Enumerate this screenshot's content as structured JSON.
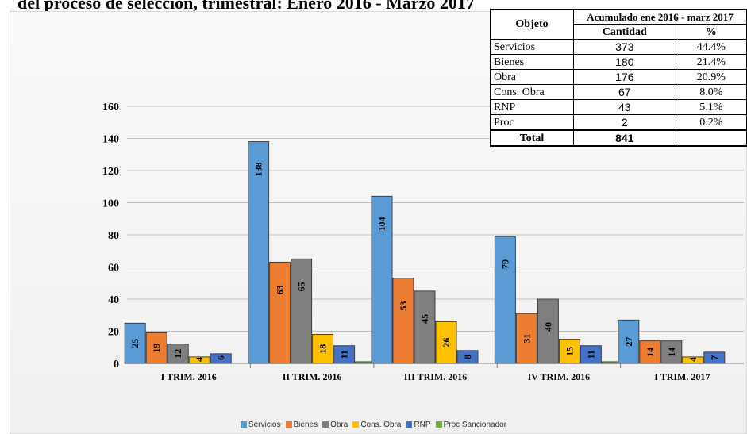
{
  "title": "del proceso de selección, trimestral: Enero 2016 - Marzo 2017",
  "table": {
    "header_objeto": "Objeto",
    "header_group": "Acumulado ene 2016 - marz 2017",
    "header_cantidad": "Cantidad",
    "header_pct": "%",
    "rows": [
      {
        "objeto": "Servicios",
        "cantidad": "373",
        "pct": "44.4%"
      },
      {
        "objeto": "Bienes",
        "cantidad": "180",
        "pct": "21.4%"
      },
      {
        "objeto": "Obra",
        "cantidad": "176",
        "pct": "20.9%"
      },
      {
        "objeto": "Cons. Obra",
        "cantidad": "67",
        "pct": "8.0%"
      },
      {
        "objeto": "RNP",
        "cantidad": "43",
        "pct": "5.1%"
      },
      {
        "objeto": "Proc",
        "cantidad": "2",
        "pct": "0.2%"
      }
    ],
    "total_label": "Total",
    "total_value": "841"
  },
  "chart_data": {
    "type": "bar",
    "categories": [
      "I TRIM. 2016",
      "II TRIM. 2016",
      "III TRIM. 2016",
      "IV TRIM. 2016",
      "I TRIM. 2017"
    ],
    "series": [
      {
        "name": "Servicios",
        "color": "#5b9bd5",
        "values": [
          25,
          138,
          104,
          79,
          27
        ],
        "labels": [
          "25",
          "138",
          "104",
          "79",
          "27"
        ]
      },
      {
        "name": "Bienes",
        "color": "#ed7d31",
        "values": [
          19,
          63,
          53,
          31,
          14
        ],
        "labels": [
          "19",
          "63",
          "53",
          "31",
          "14"
        ]
      },
      {
        "name": "Obra",
        "color": "#7f7f7f",
        "values": [
          12,
          65,
          45,
          40,
          14
        ],
        "labels": [
          "12",
          "65",
          "45",
          "40",
          "14"
        ]
      },
      {
        "name": "Cons. Obra",
        "color": "#ffc000",
        "values": [
          4,
          18,
          26,
          15,
          4
        ],
        "labels": [
          "4",
          "18",
          "26",
          "15",
          "4"
        ]
      },
      {
        "name": "RNP",
        "color": "#4472c4",
        "values": [
          6,
          11,
          8,
          11,
          7
        ],
        "labels": [
          "6",
          "11",
          "8",
          "11",
          "7"
        ]
      },
      {
        "name": "Proc Sancionador",
        "color": "#70ad47",
        "values": [
          0,
          1,
          0,
          1,
          0
        ],
        "labels": [
          "",
          "",
          "",
          "",
          ""
        ]
      }
    ],
    "yticks": [
      "0",
      "20",
      "40",
      "60",
      "80",
      "100",
      "120",
      "140",
      "160"
    ],
    "ylim": [
      0,
      160
    ],
    "grid": true,
    "legend_position": "bottom"
  }
}
